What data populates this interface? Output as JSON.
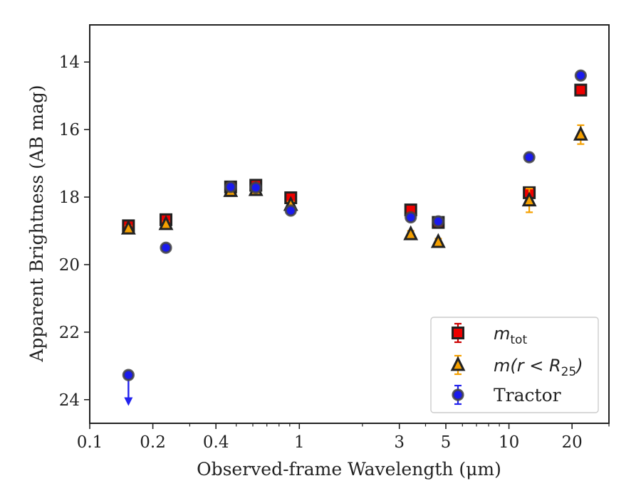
{
  "chart_data": {
    "type": "scatter",
    "xlabel": "Observed-frame Wavelength (μm)",
    "ylabel": "Apparent Brightness (AB mag)",
    "xscale": "log",
    "xlim": [
      0.1,
      30
    ],
    "ylim": [
      24.7,
      12.9
    ],
    "y_inverted": true,
    "grid": false,
    "legend_position": "bottom-right",
    "x_ticks": [
      {
        "value": 0.1,
        "label": "0.1"
      },
      {
        "value": 0.2,
        "label": "0.2"
      },
      {
        "value": 0.4,
        "label": "0.4"
      },
      {
        "value": 1,
        "label": "1"
      },
      {
        "value": 3,
        "label": "3"
      },
      {
        "value": 5,
        "label": "5"
      },
      {
        "value": 10,
        "label": "10"
      },
      {
        "value": 20,
        "label": "20"
      }
    ],
    "y_ticks": [
      {
        "value": 14,
        "label": "14"
      },
      {
        "value": 16,
        "label": "16"
      },
      {
        "value": 18,
        "label": "18"
      },
      {
        "value": 20,
        "label": "20"
      },
      {
        "value": 22,
        "label": "22"
      },
      {
        "value": 24,
        "label": "24"
      }
    ],
    "series": [
      {
        "key": "m-tot",
        "legend": {
          "base": "m",
          "sub": "tot",
          "tail": ""
        },
        "marker": "square",
        "color": "#ee0000",
        "edgecolor": "#222222",
        "errcolor": "#cc0000",
        "points": [
          {
            "x": 0.153,
            "y": 18.85,
            "err": 0.1
          },
          {
            "x": 0.231,
            "y": 18.67,
            "err": 0.1
          },
          {
            "x": 0.47,
            "y": 17.7,
            "err": 0.08
          },
          {
            "x": 0.62,
            "y": 17.65,
            "err": 0.08
          },
          {
            "x": 0.91,
            "y": 18.02,
            "err": 0.08
          },
          {
            "x": 3.4,
            "y": 18.38,
            "err": 0.1
          },
          {
            "x": 4.6,
            "y": 18.75,
            "err": 0.1
          },
          {
            "x": 12.5,
            "y": 17.87,
            "err": 0.12
          },
          {
            "x": 22.0,
            "y": 14.83,
            "err": 0.1
          }
        ]
      },
      {
        "key": "m-r25",
        "legend": {
          "base": "m(r < R",
          "sub": "25",
          "tail": ")"
        },
        "marker": "triangle",
        "color": "#f5a000",
        "edgecolor": "#222222",
        "errcolor": "#f5a000",
        "points": [
          {
            "x": 0.153,
            "y": 18.93,
            "err": 0.08
          },
          {
            "x": 0.231,
            "y": 18.8,
            "err": 0.08
          },
          {
            "x": 0.47,
            "y": 17.82,
            "err": 0.08
          },
          {
            "x": 0.62,
            "y": 17.79,
            "err": 0.08
          },
          {
            "x": 0.91,
            "y": 18.23,
            "err": 0.1
          },
          {
            "x": 3.4,
            "y": 19.1,
            "err": 0.1
          },
          {
            "x": 4.6,
            "y": 19.33,
            "err": 0.1
          },
          {
            "x": 12.5,
            "y": 18.1,
            "err": 0.35
          },
          {
            "x": 22.0,
            "y": 16.15,
            "err": 0.28
          }
        ]
      },
      {
        "key": "tractor",
        "legend": {
          "base": "Tractor",
          "sub": "",
          "tail": ""
        },
        "marker": "circle",
        "color": "#1a1aee",
        "edgecolor": "#444444",
        "errcolor": "#2222ee",
        "points": [
          {
            "x": 0.153,
            "y": 23.27,
            "err": 0,
            "upper_limit": true
          },
          {
            "x": 0.231,
            "y": 19.5,
            "err": 0.08
          },
          {
            "x": 0.47,
            "y": 17.7,
            "err": 0.08
          },
          {
            "x": 0.62,
            "y": 17.72,
            "err": 0.08
          },
          {
            "x": 0.91,
            "y": 18.4,
            "err": 0.08
          },
          {
            "x": 3.4,
            "y": 18.6,
            "err": 0.1
          },
          {
            "x": 4.6,
            "y": 18.72,
            "err": 0.1
          },
          {
            "x": 12.5,
            "y": 16.82,
            "err": 0.06
          },
          {
            "x": 22.0,
            "y": 14.4,
            "err": 0.06
          }
        ]
      }
    ]
  }
}
